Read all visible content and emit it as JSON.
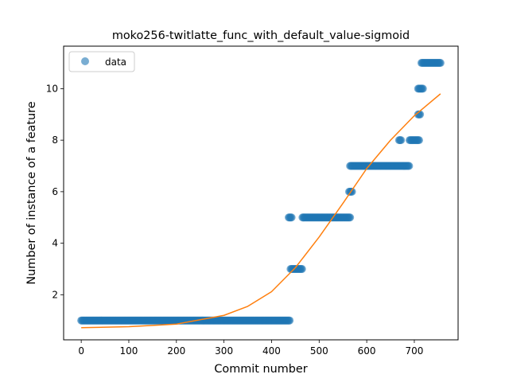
{
  "chart_data": {
    "type": "scatter",
    "title": "moko256-twitlatte_func_with_default_value-sigmoid",
    "xlabel": "Commit number",
    "ylabel": "Number of instance of a feature",
    "xlim": [
      -37,
      792
    ],
    "ylim": [
      0.25,
      11.65
    ],
    "xticks": [
      0,
      100,
      200,
      300,
      400,
      500,
      600,
      700
    ],
    "yticks": [
      2,
      4,
      6,
      8,
      10
    ],
    "grid": false,
    "legend": {
      "position": "top-left",
      "entries": [
        "data"
      ]
    },
    "colors": {
      "data": "#1f77b4",
      "fit": "#ff7f0e"
    },
    "series": [
      {
        "name": "data",
        "kind": "points",
        "segments": [
          {
            "x_from": 0,
            "x_to": 438,
            "y": 1
          },
          {
            "x_from": 436,
            "x_to": 442,
            "y": 5
          },
          {
            "x_from": 440,
            "x_to": 465,
            "y": 3
          },
          {
            "x_from": 465,
            "x_to": 565,
            "y": 5
          },
          {
            "x_from": 563,
            "x_to": 570,
            "y": 6
          },
          {
            "x_from": 565,
            "x_to": 690,
            "y": 7
          },
          {
            "x_from": 668,
            "x_to": 672,
            "y": 8
          },
          {
            "x_from": 690,
            "x_to": 710,
            "y": 8
          },
          {
            "x_from": 708,
            "x_to": 712,
            "y": 9
          },
          {
            "x_from": 708,
            "x_to": 718,
            "y": 10
          },
          {
            "x_from": 715,
            "x_to": 755,
            "y": 11
          }
        ]
      },
      {
        "kind": "sigmoid-fit",
        "x": [
          0,
          100,
          200,
          300,
          350,
          400,
          450,
          500,
          550,
          600,
          650,
          700,
          755
        ],
        "y": [
          0.72,
          0.76,
          0.86,
          1.2,
          1.55,
          2.12,
          3.05,
          4.24,
          5.55,
          6.9,
          8.0,
          8.95,
          9.8
        ]
      }
    ]
  }
}
